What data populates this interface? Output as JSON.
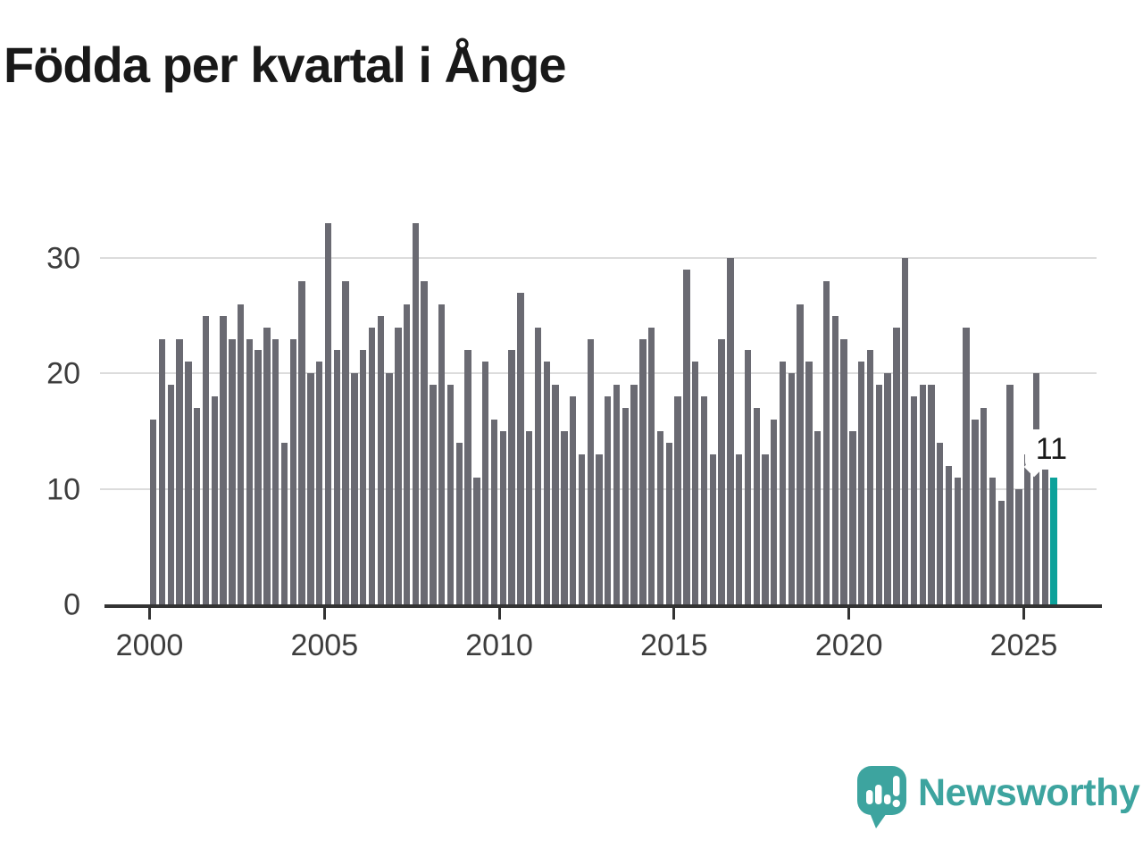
{
  "title": "Födda per kvartal i Ånge",
  "y_axis": {
    "tick_labels": [
      "0",
      "10",
      "20",
      "30"
    ]
  },
  "x_axis": {
    "tick_labels": [
      "2000",
      "2005",
      "2010",
      "2015",
      "2020",
      "2025"
    ]
  },
  "callout": {
    "label": "11"
  },
  "logo": {
    "text": "Newsworthy",
    "icon": "speech-bubble-bar-chart"
  },
  "colors": {
    "bar": "#6a6a72",
    "highlight": "#0ca19a",
    "grid": "#dcdcdc",
    "axis": "#333333",
    "axis_text": "#3d3d3d",
    "title_text": "#191919",
    "callout_text": "#1a1a1a",
    "callout_bg": "#ffffff",
    "logo": "#3da49f"
  },
  "chart_data": {
    "type": "bar",
    "title": "Födda per kvartal i Ånge",
    "xlabel": "",
    "ylabel": "",
    "start_year": 2000,
    "periods_per_year": 4,
    "end_period": "2025-Q4",
    "values": [
      16,
      23,
      19,
      23,
      21,
      17,
      25,
      18,
      25,
      23,
      26,
      23,
      22,
      24,
      23,
      14,
      23,
      28,
      20,
      21,
      33,
      22,
      28,
      20,
      22,
      24,
      25,
      20,
      24,
      26,
      33,
      28,
      19,
      26,
      19,
      14,
      22,
      11,
      21,
      16,
      15,
      22,
      27,
      15,
      24,
      21,
      19,
      15,
      18,
      13,
      23,
      13,
      18,
      19,
      17,
      19,
      23,
      24,
      15,
      14,
      18,
      29,
      21,
      18,
      13,
      23,
      30,
      13,
      22,
      17,
      13,
      16,
      21,
      20,
      26,
      21,
      15,
      28,
      25,
      23,
      15,
      21,
      22,
      19,
      20,
      24,
      30,
      18,
      19,
      19,
      14,
      12,
      11,
      24,
      16,
      17,
      11,
      9,
      19,
      10,
      13,
      20,
      12,
      11
    ],
    "y_ticks": [
      0,
      10,
      20,
      30
    ],
    "x_tick_years": [
      2000,
      2005,
      2010,
      2015,
      2020,
      2025
    ],
    "ylim": [
      0,
      34
    ],
    "grid": "horizontal",
    "legend": "none",
    "highlight_index": 103,
    "highlight_value": 11,
    "highlight_label": "11"
  }
}
